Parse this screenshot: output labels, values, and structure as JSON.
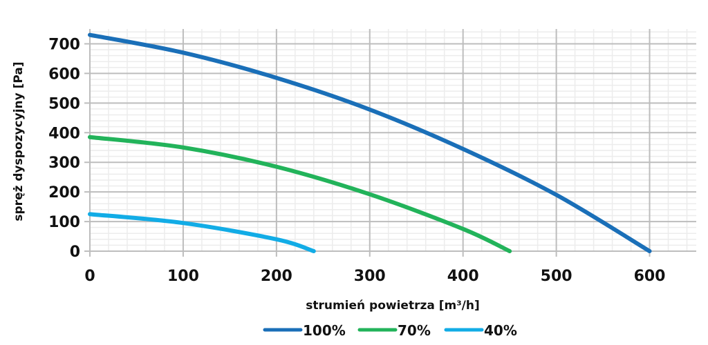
{
  "chart_data": {
    "type": "line",
    "title": "",
    "xlabel": "strumień powietrza [m³/h]",
    "ylabel": "spręż dyspozycyjny [Pa]",
    "xlim": [
      0,
      650
    ],
    "ylim": [
      0,
      750
    ],
    "x_ticks": [
      0,
      100,
      200,
      300,
      400,
      500,
      600
    ],
    "y_ticks": [
      0,
      100,
      200,
      300,
      400,
      500,
      600,
      700
    ],
    "x_tick_labels": [
      "0",
      "100",
      "200",
      "300",
      "400",
      "500",
      "600"
    ],
    "y_tick_labels": [
      "0",
      "100",
      "200",
      "300",
      "400",
      "500",
      "600",
      "700"
    ],
    "minor_step_x": 20,
    "minor_step_y": 20,
    "grid": true,
    "legend_position": "bottom",
    "series": [
      {
        "name": "100%",
        "color": "#1a6fb8",
        "x": [
          0,
          100,
          200,
          300,
          400,
          500,
          600
        ],
        "y": [
          730,
          670,
          585,
          478,
          345,
          190,
          0
        ]
      },
      {
        "name": "70%",
        "color": "#22b35a",
        "x": [
          0,
          100,
          200,
          300,
          400,
          450
        ],
        "y": [
          385,
          350,
          285,
          192,
          75,
          0
        ]
      },
      {
        "name": "40%",
        "color": "#12ace6",
        "x": [
          0,
          100,
          200,
          240
        ],
        "y": [
          125,
          95,
          40,
          0
        ]
      }
    ]
  }
}
